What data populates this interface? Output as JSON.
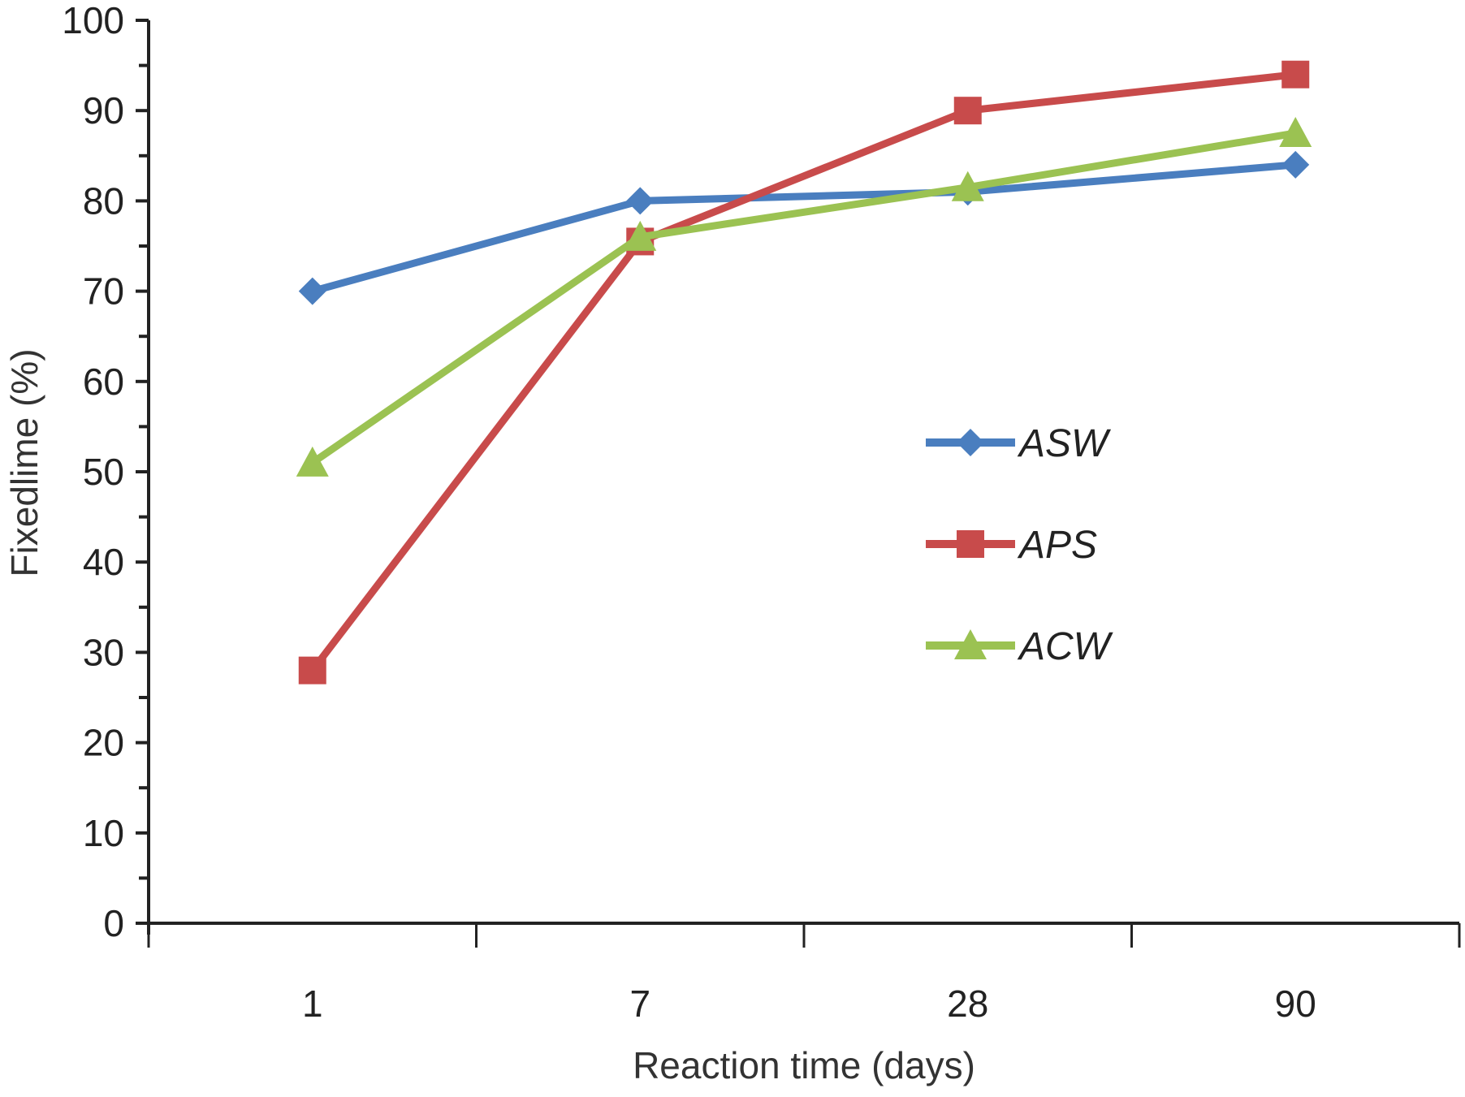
{
  "chart_data": {
    "type": "line",
    "title": "",
    "xlabel": "Reaction time (days)",
    "ylabel": "Fixedlime (%)",
    "categories": [
      "1",
      "7",
      "28",
      "90"
    ],
    "ylim": [
      0,
      100
    ],
    "yticks": [
      0,
      10,
      20,
      30,
      40,
      50,
      60,
      70,
      80,
      90,
      100
    ],
    "y_minor_step": 5,
    "grid": false,
    "legend_position": "center-right",
    "series": [
      {
        "name": "ASW",
        "color": "#4a7ebf",
        "marker": "diamond",
        "values": [
          70,
          80,
          81,
          84
        ]
      },
      {
        "name": "APS",
        "color": "#c84b4b",
        "marker": "square",
        "values": [
          28,
          75.5,
          90,
          94
        ]
      },
      {
        "name": "ACW",
        "color": "#9bc252",
        "marker": "triangle",
        "values": [
          51,
          76,
          81.5,
          87.5
        ]
      }
    ]
  }
}
